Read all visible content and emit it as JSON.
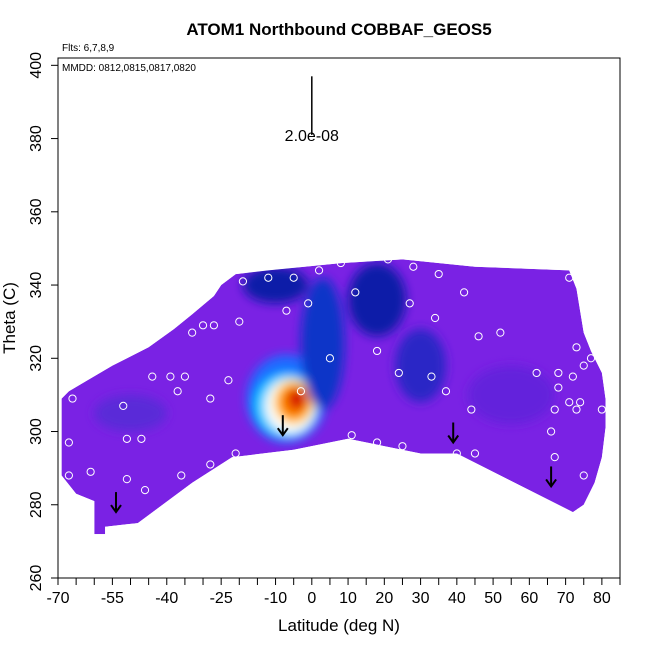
{
  "chart_data": {
    "type": "heatmap",
    "title": "ATOM1 Northbound COBBAF_GEOS5",
    "info_lines": [
      "Flts: 6,7,8,9",
      "MMDD: 0812,0815,0817,0820"
    ],
    "xlabel": "Latitude (deg N)",
    "ylabel": "Theta (C)",
    "xlim": [
      -70,
      85
    ],
    "ylim": [
      260,
      402
    ],
    "x_tick_values": [
      -70,
      -55,
      -40,
      -25,
      -10,
      0,
      10,
      20,
      30,
      40,
      50,
      60,
      70,
      80
    ],
    "x_tick_labels": [
      "-70",
      "-55",
      "-40",
      "-25",
      "-10",
      "0",
      "10",
      "20",
      "30",
      "40",
      "50",
      "60",
      "70",
      "80"
    ],
    "x_minor_ticks": [
      -65,
      -60,
      -50,
      -45,
      -35,
      -30,
      -20,
      -15,
      -5,
      5,
      15,
      25,
      35,
      45,
      55,
      65,
      75,
      85
    ],
    "y_tick_values": [
      260,
      280,
      300,
      320,
      340,
      360,
      380,
      400
    ],
    "y_tick_labels": [
      "260",
      "280",
      "300",
      "320",
      "340",
      "360",
      "380",
      "400"
    ],
    "scale_bar": {
      "x": 0,
      "y_bottom": 381,
      "y_top": 397,
      "label": "2.0e-08"
    },
    "field_outline": [
      [
        -69,
        288
      ],
      [
        -69,
        309
      ],
      [
        -67,
        311
      ],
      [
        -55,
        318
      ],
      [
        -45,
        323
      ],
      [
        -38,
        328
      ],
      [
        -33,
        332
      ],
      [
        -27,
        337
      ],
      [
        -25,
        340
      ],
      [
        -21,
        343
      ],
      [
        -12,
        344
      ],
      [
        8,
        346
      ],
      [
        25,
        347
      ],
      [
        45,
        345
      ],
      [
        71,
        344
      ],
      [
        73,
        339
      ],
      [
        74,
        333
      ],
      [
        75,
        327
      ],
      [
        77,
        322
      ],
      [
        80,
        316
      ],
      [
        81,
        309
      ],
      [
        81,
        301
      ],
      [
        80,
        293
      ],
      [
        78,
        286
      ],
      [
        75,
        280
      ],
      [
        72,
        278
      ],
      [
        40,
        294
      ],
      [
        30,
        294
      ],
      [
        10,
        298
      ],
      [
        -5,
        295
      ],
      [
        -22,
        293
      ],
      [
        -33,
        286
      ],
      [
        -48,
        275
      ],
      [
        -57,
        274
      ],
      [
        -57,
        272
      ],
      [
        -60,
        272
      ],
      [
        -60,
        281
      ],
      [
        -65,
        283
      ]
    ],
    "field_background": "#7a22e4",
    "color_patches": [
      {
        "x": -7,
        "y": 309,
        "rx": 11,
        "ry": 12,
        "color": "#1a6cff"
      },
      {
        "x": -7,
        "y": 307,
        "rx": 9,
        "ry": 9,
        "color": "#00c8ff"
      },
      {
        "x": -6,
        "y": 307,
        "rx": 7,
        "ry": 7.5,
        "color": "#ffffff"
      },
      {
        "x": -5,
        "y": 308,
        "rx": 5.5,
        "ry": 6,
        "color": "#ffcc00"
      },
      {
        "x": -5,
        "y": 308,
        "rx": 4,
        "ry": 4.5,
        "color": "#ff7a00"
      },
      {
        "x": -4,
        "y": 309,
        "rx": 2.5,
        "ry": 3,
        "color": "#d40000"
      },
      {
        "x": 3,
        "y": 324,
        "rx": 6,
        "ry": 18,
        "color": "#1034c8"
      },
      {
        "x": 18,
        "y": 336,
        "rx": 8,
        "ry": 10,
        "color": "#0a1aa8"
      },
      {
        "x": -10,
        "y": 340,
        "rx": 9,
        "ry": 5,
        "color": "#0a1aa8"
      },
      {
        "x": 30,
        "y": 318,
        "rx": 7,
        "ry": 10,
        "color": "#2a26c6"
      },
      {
        "x": -50,
        "y": 305,
        "rx": 10,
        "ry": 5,
        "color": "#5a2ad8"
      },
      {
        "x": 55,
        "y": 310,
        "rx": 12,
        "ry": 8,
        "color": "#6424dc"
      }
    ],
    "observations": [
      [
        -66,
        309
      ],
      [
        -67,
        297
      ],
      [
        -67,
        288
      ],
      [
        -61,
        289
      ],
      [
        -52,
        307
      ],
      [
        -51,
        298
      ],
      [
        -47,
        298
      ],
      [
        -46,
        284
      ],
      [
        -51,
        287
      ],
      [
        -44,
        315
      ],
      [
        -39,
        315
      ],
      [
        -37,
        311
      ],
      [
        -35,
        315
      ],
      [
        -36,
        288
      ],
      [
        -33,
        327
      ],
      [
        -30,
        329
      ],
      [
        -27,
        329
      ],
      [
        -28,
        309
      ],
      [
        -28,
        291
      ],
      [
        -23,
        314
      ],
      [
        -21,
        294
      ],
      [
        -20,
        330
      ],
      [
        -19,
        341
      ],
      [
        -12,
        342
      ],
      [
        -7,
        333
      ],
      [
        -5,
        342
      ],
      [
        -3,
        311
      ],
      [
        -1,
        335
      ],
      [
        2,
        344
      ],
      [
        5,
        320
      ],
      [
        8,
        346
      ],
      [
        11,
        299
      ],
      [
        12,
        338
      ],
      [
        14,
        348
      ],
      [
        18,
        322
      ],
      [
        18,
        297
      ],
      [
        21,
        347
      ],
      [
        24,
        316
      ],
      [
        25,
        296
      ],
      [
        27,
        335
      ],
      [
        28,
        345
      ],
      [
        33,
        315
      ],
      [
        34,
        331
      ],
      [
        35,
        343
      ],
      [
        37,
        311
      ],
      [
        40,
        294
      ],
      [
        42,
        338
      ],
      [
        44,
        306
      ],
      [
        45,
        294
      ],
      [
        46,
        326
      ],
      [
        52,
        327
      ],
      [
        62,
        316
      ],
      [
        66,
        300
      ],
      [
        67,
        293
      ],
      [
        67,
        306
      ],
      [
        68,
        316
      ],
      [
        68,
        312
      ],
      [
        71,
        342
      ],
      [
        71,
        308
      ],
      [
        72,
        315
      ],
      [
        73,
        323
      ],
      [
        73,
        306
      ],
      [
        74,
        308
      ],
      [
        74,
        278
      ],
      [
        75,
        318
      ],
      [
        75,
        288
      ],
      [
        77,
        320
      ],
      [
        80,
        306
      ]
    ],
    "trajectory_arrows": [
      [
        -54,
        278
      ],
      [
        -8,
        299
      ],
      [
        39,
        297
      ],
      [
        66,
        285
      ]
    ],
    "colors": {
      "frame": "#000000",
      "marker": "#ffffff",
      "arrow": "#000000"
    }
  }
}
